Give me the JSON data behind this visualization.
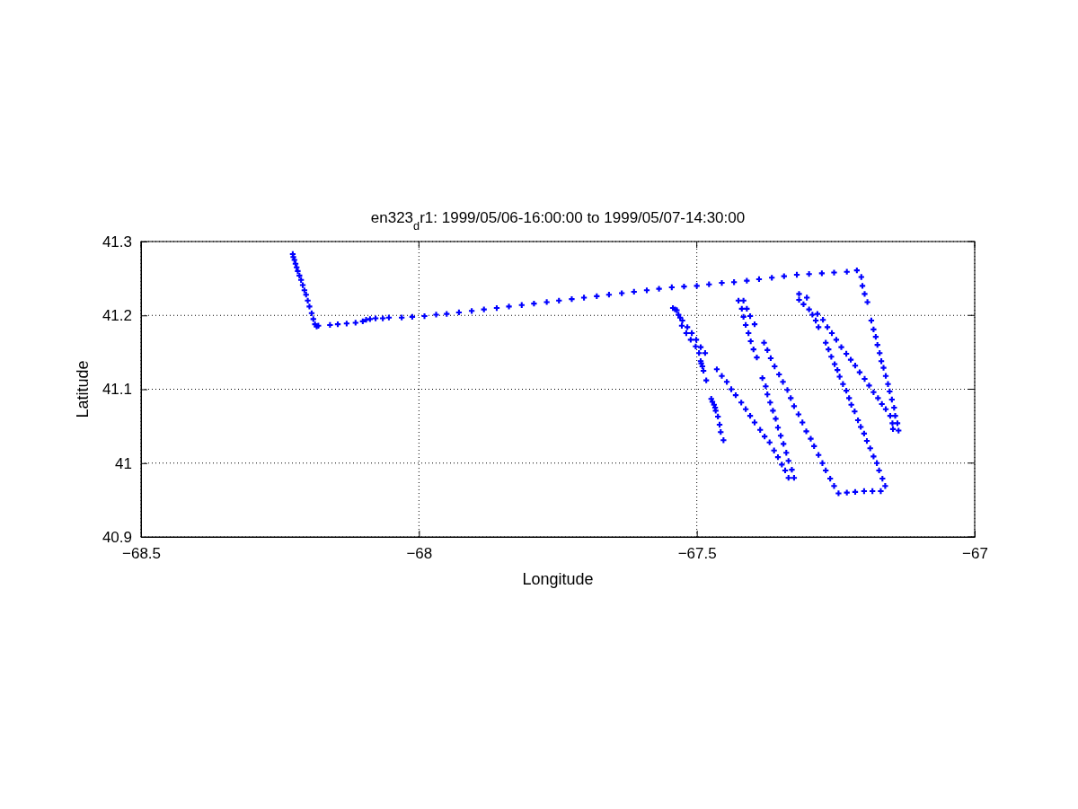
{
  "chart_data": {
    "type": "scatter",
    "title": "en323$_{d}$r1: 1999/05/06-16:00:00 to 1999/05/07-14:30:00",
    "xlabel": "Longitude",
    "ylabel": "Latitude",
    "xlim": [
      -68.5,
      -67
    ],
    "ylim": [
      40.9,
      41.3
    ],
    "xticks": [
      -68.5,
      -68,
      -67.5,
      -67
    ],
    "yticks": [
      40.9,
      41,
      41.1,
      41.2,
      41.3
    ],
    "grid": true,
    "marker": "cross",
    "series": [
      {
        "color": "#0000ff",
        "x": [
          -68.227,
          -68.226,
          -68.224,
          -68.222,
          -68.22,
          -68.218,
          -68.215,
          -68.212,
          -68.209,
          -68.206,
          -68.203,
          -68.2,
          -68.197,
          -68.193,
          -68.19,
          -68.187,
          -68.184,
          -68.181,
          -68.16,
          -68.146,
          -68.13,
          -68.114,
          -68.101,
          -68.095,
          -68.088,
          -68.078,
          -68.065,
          -68.054,
          -68.031,
          -68.012,
          -67.99,
          -67.969,
          -67.95,
          -67.928,
          -67.905,
          -67.883,
          -67.86,
          -67.838,
          -67.815,
          -67.793,
          -67.77,
          -67.748,
          -67.725,
          -67.703,
          -67.68,
          -67.658,
          -67.635,
          -67.613,
          -67.59,
          -67.568,
          -67.545,
          -67.523,
          -67.5,
          -67.478,
          -67.455,
          -67.433,
          -67.41,
          -67.388,
          -67.365,
          -67.343,
          -67.32,
          -67.298,
          -67.275,
          -67.253,
          -67.23,
          -67.212,
          -67.204,
          -67.202,
          -67.198,
          -67.193,
          -67.186,
          -67.182,
          -67.178,
          -67.175,
          -67.171,
          -67.168,
          -67.164,
          -67.16,
          -67.156,
          -67.153,
          -67.149,
          -67.145,
          -67.143,
          -67.139,
          -67.137,
          -67.543,
          -67.539,
          -67.536,
          -67.533,
          -67.53,
          -67.526,
          -67.527,
          -67.517,
          -67.519,
          -67.509,
          -67.511,
          -67.501,
          -67.502,
          -67.493,
          -67.496,
          -67.485,
          -67.493,
          -67.492,
          -67.49,
          -67.488,
          -67.483,
          -67.474,
          -67.472,
          -67.469,
          -67.467,
          -67.466,
          -67.462,
          -67.459,
          -67.457,
          -67.452,
          -67.464,
          -67.455,
          -67.446,
          -67.438,
          -67.43,
          -67.42,
          -67.412,
          -67.404,
          -67.396,
          -67.386,
          -67.378,
          -67.369,
          -67.361,
          -67.354,
          -67.347,
          -67.341,
          -67.335,
          -67.325,
          -67.329,
          -67.335,
          -67.339,
          -67.344,
          -67.349,
          -67.354,
          -67.358,
          -67.363,
          -67.368,
          -67.373,
          -67.376,
          -67.382,
          -67.392,
          -67.398,
          -67.403,
          -67.407,
          -67.396,
          -67.412,
          -67.404,
          -67.416,
          -67.41,
          -67.419,
          -67.416,
          -67.425,
          -67.379,
          -67.373,
          -67.367,
          -67.36,
          -67.352,
          -67.345,
          -67.337,
          -67.331,
          -67.325,
          -67.317,
          -67.31,
          -67.303,
          -67.295,
          -67.289,
          -67.281,
          -67.274,
          -67.268,
          -67.26,
          -67.253,
          -67.245,
          -67.23,
          -67.215,
          -67.199,
          -67.184,
          -67.169,
          -67.161,
          -67.166,
          -67.172,
          -67.176,
          -67.182,
          -67.188,
          -67.194,
          -67.199,
          -67.205,
          -67.21,
          -67.216,
          -67.222,
          -67.226,
          -67.231,
          -67.237,
          -67.243,
          -67.247,
          -67.252,
          -67.258,
          -67.263,
          -67.268,
          -67.316,
          -67.316,
          -67.302,
          -67.308,
          -67.298,
          -67.292,
          -67.283,
          -67.286,
          -67.273,
          -67.281,
          -67.265,
          -67.257,
          -67.249,
          -67.24,
          -67.231,
          -67.223,
          -67.215,
          -67.207,
          -67.198,
          -67.19,
          -67.182,
          -67.174,
          -67.167,
          -67.16,
          -67.152,
          -67.148,
          -67.147
        ],
        "values": [
          41.283,
          41.279,
          41.275,
          41.27,
          41.265,
          41.26,
          41.254,
          41.248,
          41.241,
          41.234,
          41.228,
          41.22,
          41.212,
          41.203,
          41.195,
          41.188,
          41.185,
          41.186,
          41.187,
          41.188,
          41.189,
          41.19,
          41.192,
          41.194,
          41.195,
          41.196,
          41.196,
          41.197,
          41.197,
          41.198,
          41.199,
          41.201,
          41.202,
          41.204,
          41.206,
          41.208,
          41.21,
          41.212,
          41.214,
          41.216,
          41.218,
          41.22,
          41.222,
          41.224,
          41.226,
          41.228,
          41.23,
          41.232,
          41.234,
          41.236,
          41.238,
          41.239,
          41.24,
          41.242,
          41.244,
          41.245,
          41.247,
          41.249,
          41.251,
          41.253,
          41.255,
          41.256,
          41.257,
          41.258,
          41.259,
          41.261,
          41.252,
          41.24,
          41.229,
          41.218,
          41.193,
          41.181,
          41.171,
          41.16,
          41.149,
          41.138,
          41.129,
          41.118,
          41.107,
          41.097,
          41.086,
          41.075,
          41.064,
          41.054,
          41.044,
          41.21,
          41.208,
          41.207,
          41.201,
          41.197,
          41.193,
          41.186,
          41.184,
          41.176,
          41.176,
          41.167,
          41.167,
          41.158,
          41.157,
          41.149,
          41.149,
          41.138,
          41.135,
          41.131,
          41.125,
          41.112,
          41.087,
          41.083,
          41.079,
          41.075,
          41.071,
          41.063,
          41.052,
          41.042,
          41.031,
          41.127,
          41.118,
          41.11,
          41.1,
          41.092,
          41.082,
          41.073,
          41.064,
          41.055,
          41.045,
          41.036,
          41.028,
          41.017,
          41.008,
          40.998,
          40.99,
          40.98,
          40.98,
          40.991,
          41.003,
          41.014,
          41.026,
          41.037,
          41.048,
          41.06,
          41.071,
          41.082,
          41.093,
          41.104,
          41.115,
          41.143,
          41.154,
          41.165,
          41.176,
          41.188,
          41.187,
          41.199,
          41.198,
          41.209,
          41.209,
          41.22,
          41.22,
          41.163,
          41.153,
          41.142,
          41.131,
          41.12,
          41.11,
          41.099,
          41.088,
          41.077,
          41.066,
          41.055,
          41.043,
          41.033,
          41.023,
          41.011,
          41.0,
          40.99,
          40.979,
          40.969,
          40.959,
          40.96,
          40.961,
          40.962,
          40.962,
          40.962,
          40.969,
          40.979,
          40.99,
          41.0,
          41.009,
          41.02,
          41.03,
          41.04,
          41.049,
          41.058,
          41.07,
          41.079,
          41.088,
          41.098,
          41.107,
          41.117,
          41.126,
          41.134,
          41.144,
          41.154,
          41.163,
          41.229,
          41.221,
          41.224,
          41.215,
          41.208,
          41.201,
          41.202,
          41.193,
          41.194,
          41.184,
          41.184,
          41.176,
          41.167,
          41.157,
          41.148,
          41.14,
          41.132,
          41.123,
          41.114,
          41.105,
          41.096,
          41.088,
          41.08,
          41.073,
          41.064,
          41.054,
          41.046
        ]
      }
    ]
  }
}
